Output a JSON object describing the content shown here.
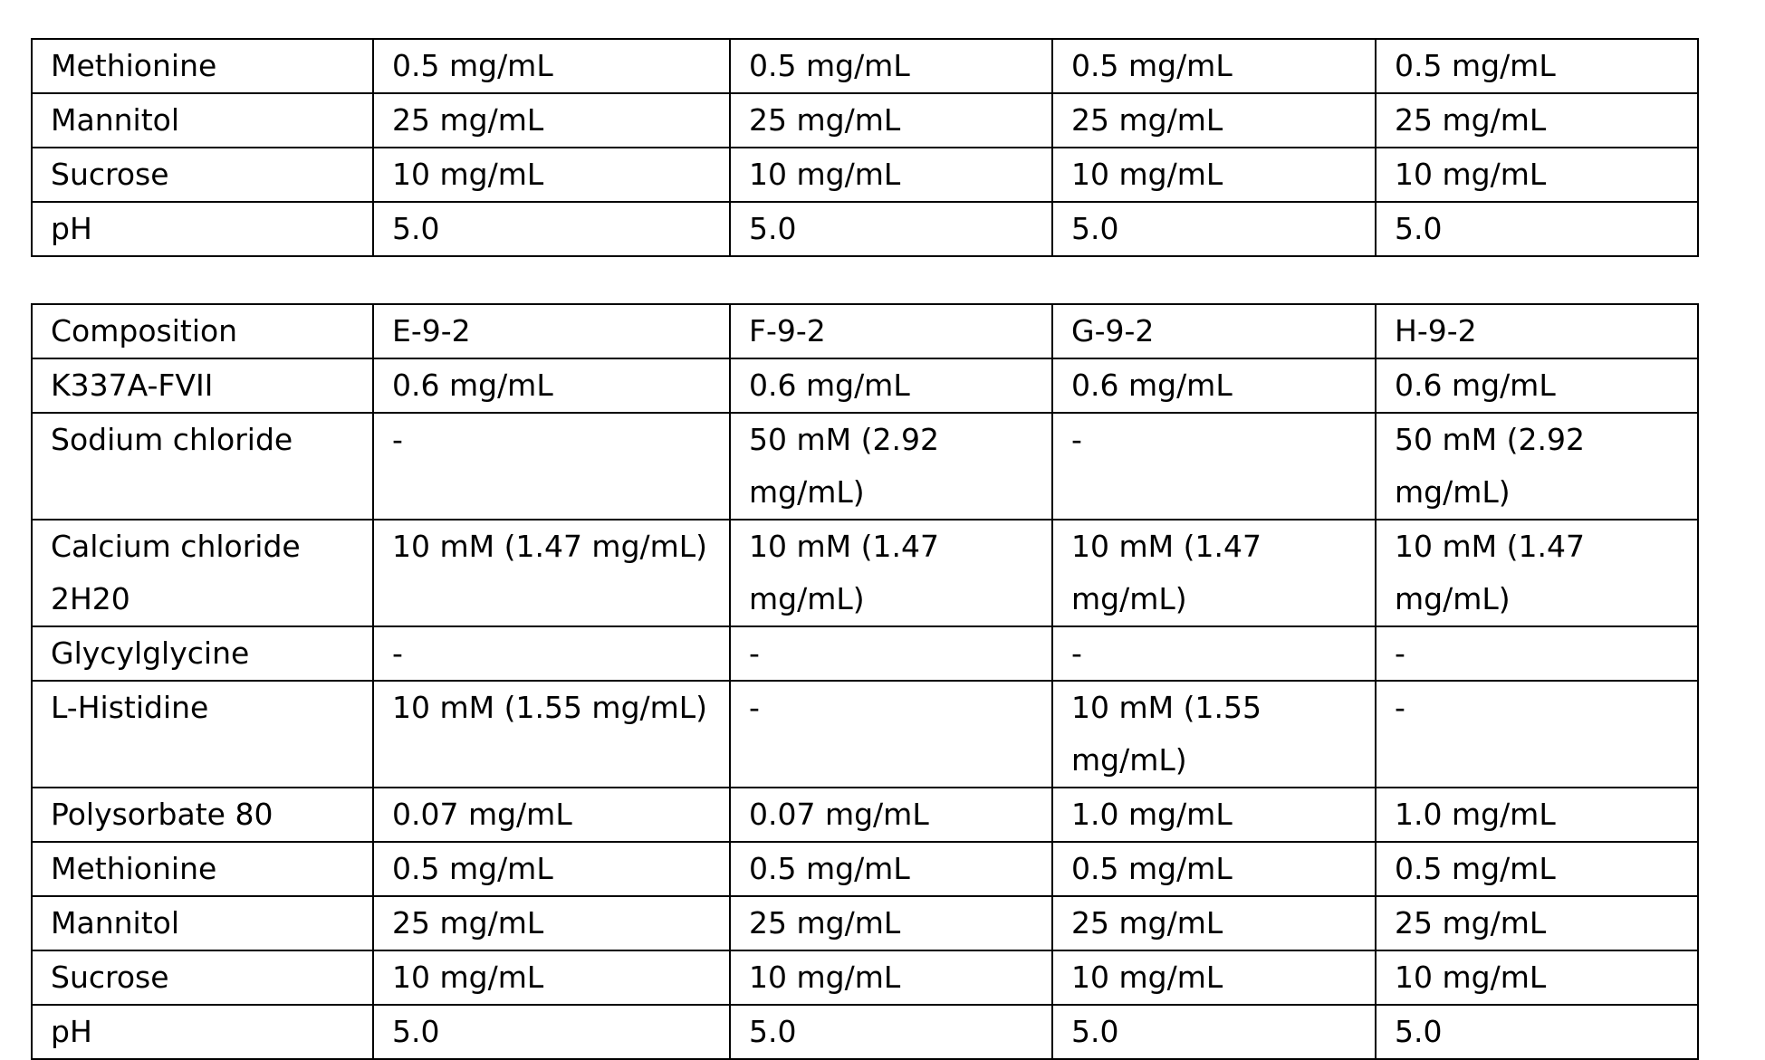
{
  "tables": [
    {
      "rows": [
        [
          "Methionine",
          "0.5 mg/mL",
          "0.5 mg/mL",
          "0.5 mg/mL",
          "0.5 mg/mL"
        ],
        [
          "Mannitol",
          "25 mg/mL",
          "25 mg/mL",
          "25 mg/mL",
          "25 mg/mL"
        ],
        [
          "Sucrose",
          "10 mg/mL",
          "10 mg/mL",
          "10 mg/mL",
          "10 mg/mL"
        ],
        [
          "pH",
          "5.0",
          "5.0",
          "5.0",
          "5.0"
        ]
      ]
    },
    {
      "rows": [
        [
          "Composition",
          "E-9-2",
          "F-9-2",
          "G-9-2",
          "H-9-2"
        ],
        [
          "K337A-FVII",
          "0.6 mg/mL",
          "0.6 mg/mL",
          "0.6 mg/mL",
          "0.6 mg/mL"
        ],
        [
          "Sodium chloride",
          "-",
          "50 mM (2.92 mg/mL)",
          "-",
          "50 mM (2.92 mg/mL)"
        ],
        [
          "Calcium chloride 2H20",
          "10 mM (1.47 mg/mL)",
          "10 mM (1.47 mg/mL)",
          "10 mM (1.47 mg/mL)",
          "10 mM (1.47 mg/mL)"
        ],
        [
          "Glycylglycine",
          "-",
          "-",
          "-",
          "-"
        ],
        [
          "L-Histidine",
          "10 mM (1.55 mg/mL)",
          "-",
          "10 mM (1.55 mg/mL)",
          "-"
        ],
        [
          "Polysorbate 80",
          "0.07 mg/mL",
          "0.07 mg/mL",
          "1.0 mg/mL",
          "1.0 mg/mL"
        ],
        [
          "Methionine",
          "0.5 mg/mL",
          "0.5 mg/mL",
          "0.5 mg/mL",
          "0.5 mg/mL"
        ],
        [
          "Mannitol",
          "25 mg/mL",
          "25 mg/mL",
          "25 mg/mL",
          "25 mg/mL"
        ],
        [
          "Sucrose",
          "10 mg/mL",
          "10 mg/mL",
          "10 mg/mL",
          "10 mg/mL"
        ],
        [
          "pH",
          "5.0",
          "5.0",
          "5.0",
          "5.0"
        ]
      ]
    }
  ]
}
